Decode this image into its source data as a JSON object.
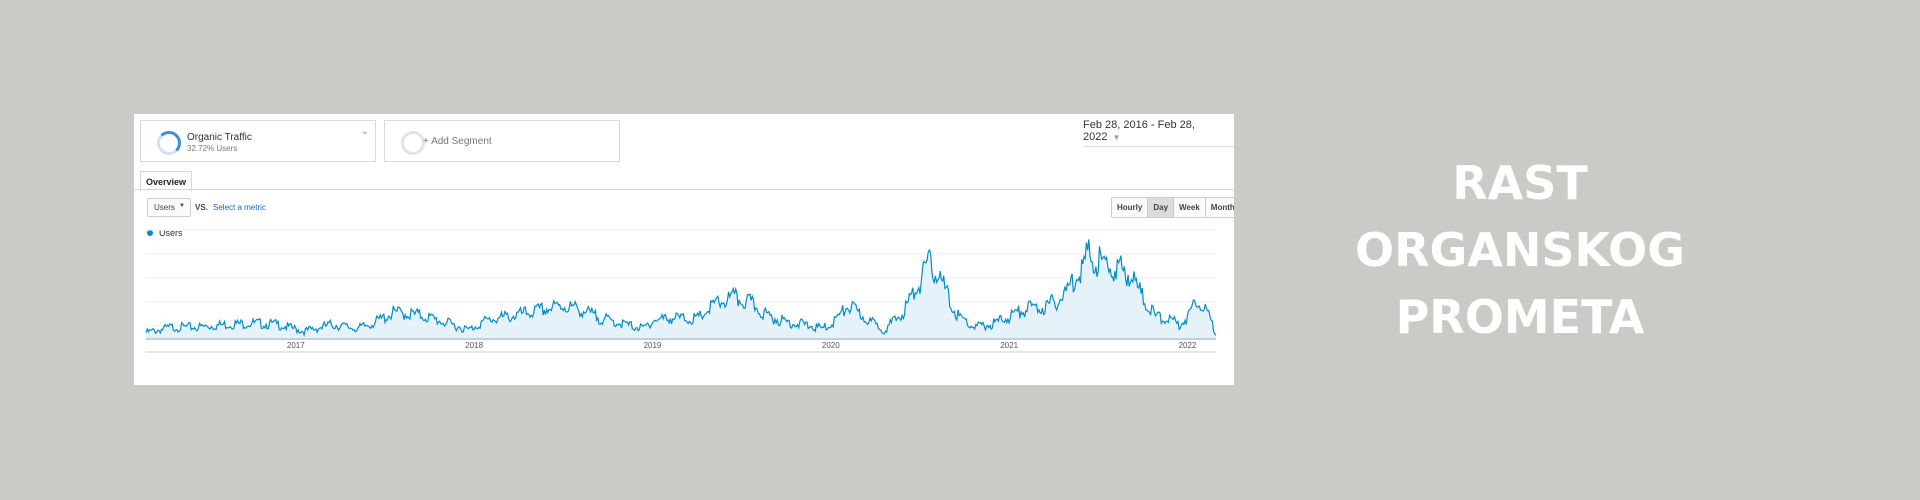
{
  "segments": {
    "organic": {
      "title": "Organic Traffic",
      "subtitle": "32.72% Users"
    },
    "add_segment_label": "+ Add Segment"
  },
  "date_range": "Feb 28, 2016 - Feb 28, 2022",
  "tabs": {
    "overview": "Overview"
  },
  "controls": {
    "metric": "Users",
    "vs": "VS.",
    "select_metric": "Select a metric",
    "granularity": [
      "Hourly",
      "Day",
      "Week",
      "Month"
    ],
    "active_granularity": "Day"
  },
  "colors": {
    "line": "#058dc7",
    "fill": "#e6f2fa",
    "background": "#cccac6"
  },
  "headline": {
    "line1": "RAST",
    "line2": "ORGANSKOG",
    "line3": "PROMETA"
  },
  "chart_data": {
    "type": "area",
    "series": [
      {
        "name": "Users",
        "x": [
          2016.16,
          2016.3,
          2016.45,
          2016.6,
          2016.75,
          2016.9,
          2017.05,
          2017.2,
          2017.35,
          2017.45,
          2017.55,
          2017.7,
          2017.85,
          2017.97,
          2018.05,
          2018.1,
          2018.2,
          2018.35,
          2018.5,
          2018.6,
          2018.7,
          2018.85,
          2018.95,
          2019.0,
          2019.1,
          2019.25,
          2019.35,
          2019.45,
          2019.55,
          2019.65,
          2019.75,
          2019.85,
          2019.95,
          2020.0,
          2020.1,
          2020.2,
          2020.3,
          2020.4,
          2020.5,
          2020.55,
          2020.6,
          2020.7,
          2020.8,
          2020.9,
          2021.0,
          2021.1,
          2021.2,
          2021.3,
          2021.38,
          2021.45,
          2021.52,
          2021.6,
          2021.68,
          2021.75,
          2021.82,
          2021.9,
          2021.95,
          2022.0,
          2022.05,
          2022.1,
          2022.16
        ],
        "values": [
          4,
          8,
          8,
          10,
          11,
          10,
          5,
          10,
          7,
          12,
          19,
          17,
          11,
          6,
          12,
          14,
          16,
          20,
          24,
          21,
          15,
          10,
          7,
          13,
          15,
          14,
          25,
          30,
          26,
          16,
          12,
          10,
          7,
          10,
          24,
          14,
          6,
          18,
          42,
          55,
          48,
          18,
          8,
          10,
          16,
          22,
          23,
          30,
          48,
          62,
          55,
          52,
          48,
          30,
          16,
          14,
          10,
          15,
          30,
          22,
          4
        ]
      }
    ],
    "x_ticks": [
      "2017",
      "2018",
      "2019",
      "2020",
      "2021",
      "2022"
    ],
    "xlim": [
      2016.16,
      2022.16
    ],
    "grid": true
  }
}
